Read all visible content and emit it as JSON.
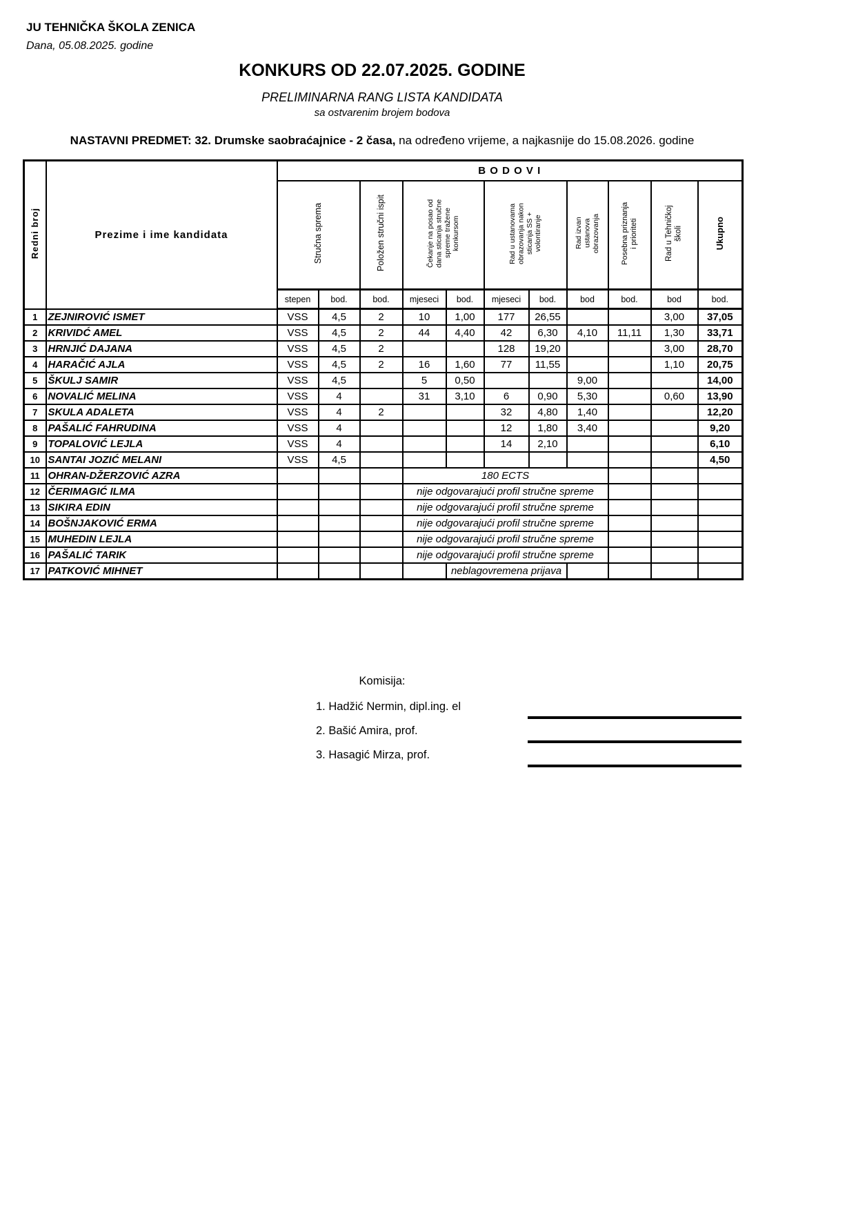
{
  "page": {
    "school_name": "JU TEHNIČKA ŠKOLA ZENICA",
    "date_line": "Dana, 05.08.2025. godine",
    "title": "KONKURS OD 22.07.2025. GODINE",
    "subtitle": "PRELIMINARNA RANG LISTA KANDIDATA",
    "subtitle2": "sa ostvarenim brojem bodova",
    "subject_bold": "NASTAVNI PREDMET: 32. Drumske saobraćajnice - 2 časa,",
    "subject_rest": " na određeno vrijeme, a najkasnije do 15.08.2026. godine"
  },
  "table": {
    "header": {
      "redni_broj": "Redni broj",
      "name_col": "Prezime i ime kandidata",
      "bodovi": "B O D O V I",
      "groups": [
        "Stručna sprema",
        "Položen stručni ispit",
        "Čekanje na posao od dana sticanja stručne spreme tražene konkursom",
        "Rad u ustanovama obrazovanja nakon sticanja SS + volontiranje",
        "Rad izvan ustanova obrazovanja",
        "Posebna priznanja i prioriteti",
        "Rad u Tehničkoj školi",
        "Ukupno"
      ],
      "units": [
        "stepen",
        "bod.",
        "bod.",
        "mjeseci",
        "bod.",
        "mjeseci",
        "bod.",
        "bod",
        "bod.",
        "bod",
        "bod."
      ]
    },
    "rows": [
      {
        "num": "1",
        "name": "ZEJNIROVIĆ ISMET",
        "cells": [
          "VSS",
          "4,5",
          "2",
          "10",
          "1,00",
          "177",
          "26,55",
          "",
          "",
          "3,00",
          "37,05"
        ]
      },
      {
        "num": "2",
        "name": "KRIVIDĆ AMEL",
        "cells": [
          "VSS",
          "4,5",
          "2",
          "44",
          "4,40",
          "42",
          "6,30",
          "4,10",
          "11,11",
          "1,30",
          "33,71"
        ]
      },
      {
        "num": "3",
        "name": "HRNJIĆ DAJANA",
        "cells": [
          "VSS",
          "4,5",
          "2",
          "",
          "",
          "128",
          "19,20",
          "",
          "",
          "3,00",
          "28,70"
        ]
      },
      {
        "num": "4",
        "name": "HARAČIĆ AJLA",
        "cells": [
          "VSS",
          "4,5",
          "2",
          "16",
          "1,60",
          "77",
          "11,55",
          "",
          "",
          "1,10",
          "20,75"
        ]
      },
      {
        "num": "5",
        "name": "ŠKULJ SAMIR",
        "cells": [
          "VSS",
          "4,5",
          "",
          "5",
          "0,50",
          "",
          "",
          "9,00",
          "",
          "",
          "14,00"
        ]
      },
      {
        "num": "6",
        "name": "NOVALIĆ MELINA",
        "cells": [
          "VSS",
          "4",
          "",
          "31",
          "3,10",
          "6",
          "0,90",
          "5,30",
          "",
          "0,60",
          "13,90"
        ]
      },
      {
        "num": "7",
        "name": "SKULA ADALETA",
        "cells": [
          "VSS",
          "4",
          "2",
          "",
          "",
          "32",
          "4,80",
          "1,40",
          "",
          "",
          "12,20"
        ]
      },
      {
        "num": "8",
        "name": "PAŠALIĆ FAHRUDINA",
        "cells": [
          "VSS",
          "4",
          "",
          "",
          "",
          "12",
          "1,80",
          "3,40",
          "",
          "",
          "9,20"
        ]
      },
      {
        "num": "9",
        "name": "TOPALOVIĆ LEJLA",
        "cells": [
          "VSS",
          "4",
          "",
          "",
          "",
          "14",
          "2,10",
          "",
          "",
          "",
          "6,10"
        ]
      },
      {
        "num": "10",
        "name": "SANTAI JOZIĆ MELANI",
        "cells": [
          "VSS",
          "4,5",
          "",
          "",
          "",
          "",
          "",
          "",
          "",
          "",
          "4,50"
        ]
      },
      {
        "num": "11",
        "name": "OHRAN-DŽERZOVIĆ AZRA",
        "pre": 3,
        "span": 5,
        "note": "180 ECTS",
        "post": 3
      },
      {
        "num": "12",
        "name": "ČERIMAGIĆ ILMA",
        "pre": 3,
        "span": 5,
        "note": "nije odgovarajući profil stručne spreme",
        "post": 3
      },
      {
        "num": "13",
        "name": "SIKIRA EDIN",
        "pre": 3,
        "span": 5,
        "note": "nije odgovarajući profil stručne spreme",
        "post": 3
      },
      {
        "num": "14",
        "name": "BOŠNJAKOVIĆ ERMA",
        "pre": 3,
        "span": 5,
        "note": "nije odgovarajući profil stručne spreme",
        "post": 3
      },
      {
        "num": "15",
        "name": "MUHEDIN LEJLA",
        "pre": 3,
        "span": 5,
        "note": "nije odgovarajući profil stručne spreme",
        "post": 3
      },
      {
        "num": "16",
        "name": "PAŠALIĆ TARIK",
        "pre": 3,
        "span": 5,
        "note": "nije odgovarajući profil stručne spreme",
        "post": 3
      },
      {
        "num": "17",
        "name": "PATKOVIĆ MIHNET",
        "pre": 4,
        "span": 3,
        "note": "neblagovremena prijava",
        "post": 4
      }
    ]
  },
  "footer": {
    "commission_label": "Komisija:",
    "members": [
      "1. Hadžić Nermin, dipl.ing. el",
      "2. Bašić Amira, prof.",
      "3. Hasagić Mirza, prof."
    ]
  }
}
